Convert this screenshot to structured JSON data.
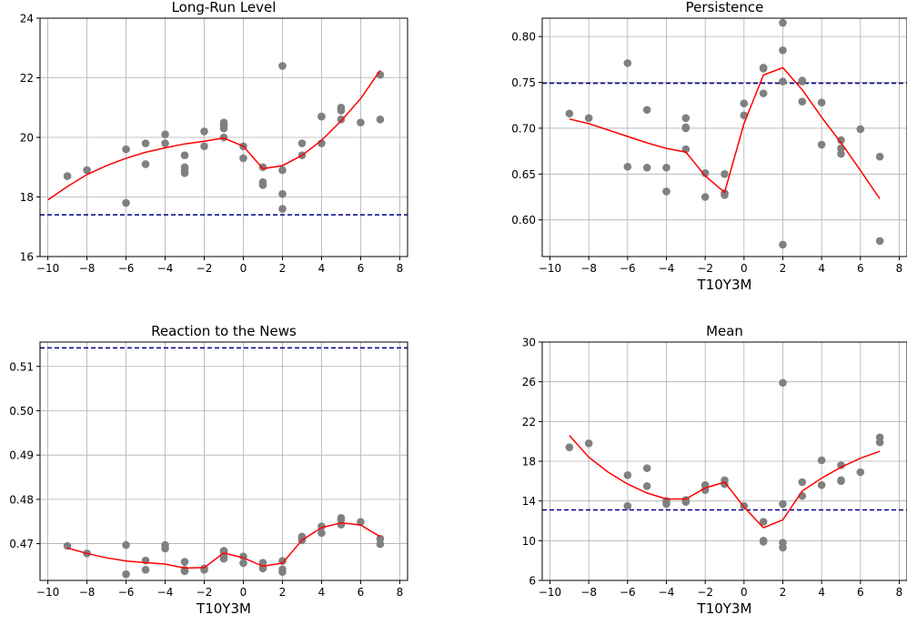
{
  "chart_data": [
    {
      "type": "scatter",
      "title": "Long-Run Level",
      "xlabel": "",
      "ylabel": "",
      "xlim": [
        -10.4,
        8.4
      ],
      "ylim": [
        16,
        24
      ],
      "xticks": [
        -10,
        -8,
        -6,
        -4,
        -2,
        0,
        2,
        4,
        6,
        8
      ],
      "yticks": [
        16,
        18,
        20,
        22,
        24
      ],
      "ytick_labels": [
        "16",
        "18",
        "20",
        "22",
        "24"
      ],
      "reference_line": 17.4,
      "points": [
        [
          -9,
          18.7
        ],
        [
          -8,
          18.9
        ],
        [
          -6,
          19.6
        ],
        [
          -6,
          17.8
        ],
        [
          -5,
          19.8
        ],
        [
          -5,
          19.1
        ],
        [
          -4,
          20.1
        ],
        [
          -4,
          19.8
        ],
        [
          -3,
          19.4
        ],
        [
          -3,
          19.0
        ],
        [
          -3,
          18.8
        ],
        [
          -3,
          18.9
        ],
        [
          -2,
          20.2
        ],
        [
          -2,
          19.7
        ],
        [
          -1,
          20.5
        ],
        [
          -1,
          20.4
        ],
        [
          -1,
          20.3
        ],
        [
          -1,
          20.0
        ],
        [
          0,
          19.7
        ],
        [
          0,
          19.3
        ],
        [
          1,
          19.0
        ],
        [
          1,
          18.4
        ],
        [
          1,
          18.5
        ],
        [
          2,
          22.4
        ],
        [
          2,
          18.9
        ],
        [
          2,
          18.1
        ],
        [
          2,
          17.6
        ],
        [
          3,
          19.8
        ],
        [
          3,
          19.4
        ],
        [
          4,
          20.7
        ],
        [
          4,
          20.7
        ],
        [
          4,
          19.8
        ],
        [
          5,
          21.0
        ],
        [
          5,
          20.9
        ],
        [
          5,
          20.6
        ],
        [
          6,
          20.5
        ],
        [
          7,
          22.1
        ],
        [
          7,
          20.6
        ]
      ],
      "trend": [
        [
          -10,
          17.9
        ],
        [
          -9,
          18.35
        ],
        [
          -8,
          18.75
        ],
        [
          -7,
          19.05
        ],
        [
          -6,
          19.3
        ],
        [
          -5,
          19.5
        ],
        [
          -4,
          19.65
        ],
        [
          -3,
          19.78
        ],
        [
          -2,
          19.87
        ],
        [
          -1,
          19.98
        ],
        [
          0,
          19.7
        ],
        [
          1,
          18.95
        ],
        [
          2,
          19.05
        ],
        [
          3,
          19.4
        ],
        [
          4,
          19.9
        ],
        [
          5,
          20.55
        ],
        [
          6,
          21.3
        ],
        [
          7,
          22.25
        ]
      ]
    },
    {
      "type": "scatter",
      "title": "Persistence",
      "xlabel": "T10Y3M",
      "ylabel": "",
      "xlim": [
        -10.4,
        8.4
      ],
      "ylim": [
        0.56,
        0.82
      ],
      "xticks": [
        -10,
        -8,
        -6,
        -4,
        -2,
        0,
        2,
        4,
        6,
        8
      ],
      "yticks": [
        0.6,
        0.65,
        0.7,
        0.75,
        0.8
      ],
      "ytick_labels": [
        "0.60",
        "0.65",
        "0.70",
        "0.75",
        "0.80"
      ],
      "reference_line": 0.749,
      "points": [
        [
          -9,
          0.716
        ],
        [
          -8,
          0.711
        ],
        [
          -6,
          0.771
        ],
        [
          -6,
          0.658
        ],
        [
          -5,
          0.72
        ],
        [
          -5,
          0.657
        ],
        [
          -4,
          0.657
        ],
        [
          -4,
          0.631
        ],
        [
          -3,
          0.711
        ],
        [
          -3,
          0.701
        ],
        [
          -3,
          0.7
        ],
        [
          -3,
          0.677
        ],
        [
          -2,
          0.651
        ],
        [
          -2,
          0.625
        ],
        [
          -1,
          0.65
        ],
        [
          -1,
          0.629
        ],
        [
          -1,
          0.627
        ],
        [
          0,
          0.727
        ],
        [
          0,
          0.714
        ],
        [
          1,
          0.766
        ],
        [
          1,
          0.765
        ],
        [
          1,
          0.738
        ],
        [
          2,
          0.815
        ],
        [
          2,
          0.785
        ],
        [
          2,
          0.751
        ],
        [
          2,
          0.573
        ],
        [
          3,
          0.752
        ],
        [
          3,
          0.751
        ],
        [
          3,
          0.729
        ],
        [
          4,
          0.728
        ],
        [
          4,
          0.682
        ],
        [
          5,
          0.687
        ],
        [
          5,
          0.678
        ],
        [
          5,
          0.672
        ],
        [
          6,
          0.699
        ],
        [
          7,
          0.669
        ],
        [
          7,
          0.577
        ]
      ],
      "trend": [
        [
          -9,
          0.71
        ],
        [
          -8,
          0.705
        ],
        [
          -7,
          0.698
        ],
        [
          -6,
          0.691
        ],
        [
          -5,
          0.684
        ],
        [
          -4,
          0.678
        ],
        [
          -3,
          0.674
        ],
        [
          -2,
          0.648
        ],
        [
          -1,
          0.63
        ],
        [
          0,
          0.705
        ],
        [
          1,
          0.758
        ],
        [
          2,
          0.766
        ],
        [
          3,
          0.742
        ],
        [
          4,
          0.712
        ],
        [
          5,
          0.684
        ],
        [
          6,
          0.654
        ],
        [
          7,
          0.623
        ]
      ]
    },
    {
      "type": "scatter",
      "title": "Reaction to the News",
      "xlabel": "T10Y3M",
      "ylabel": "",
      "xlim": [
        -10.4,
        8.4
      ],
      "ylim": [
        0.4617,
        0.5155
      ],
      "xticks": [
        -10,
        -8,
        -6,
        -4,
        -2,
        0,
        2,
        4,
        6,
        8
      ],
      "yticks": [
        0.47,
        0.48,
        0.49,
        0.5,
        0.51
      ],
      "ytick_labels": [
        "0.47",
        "0.48",
        "0.49",
        "0.50",
        "0.51"
      ],
      "reference_line": 0.5142,
      "points": [
        [
          -9,
          0.4695
        ],
        [
          -8,
          0.4678
        ],
        [
          -6,
          0.4697
        ],
        [
          -6,
          0.4631
        ],
        [
          -5,
          0.4662
        ],
        [
          -5,
          0.4641
        ],
        [
          -4,
          0.4697
        ],
        [
          -4,
          0.4689
        ],
        [
          -3,
          0.4659
        ],
        [
          -3,
          0.4641
        ],
        [
          -3,
          0.4638
        ],
        [
          -2,
          0.4644
        ],
        [
          -2,
          0.4641
        ],
        [
          -1,
          0.4684
        ],
        [
          -1,
          0.4681
        ],
        [
          -1,
          0.4671
        ],
        [
          -1,
          0.4666
        ],
        [
          0,
          0.4671
        ],
        [
          0,
          0.4656
        ],
        [
          1,
          0.4657
        ],
        [
          1,
          0.4646
        ],
        [
          1,
          0.4644
        ],
        [
          2,
          0.4661
        ],
        [
          2,
          0.4642
        ],
        [
          2,
          0.4636
        ],
        [
          3,
          0.4716
        ],
        [
          3,
          0.4712
        ],
        [
          3,
          0.4708
        ],
        [
          4,
          0.4739
        ],
        [
          4,
          0.4724
        ],
        [
          5,
          0.4758
        ],
        [
          5,
          0.4754
        ],
        [
          5,
          0.4743
        ],
        [
          6,
          0.4749
        ],
        [
          7,
          0.4711
        ],
        [
          7,
          0.4699
        ]
      ],
      "trend": [
        [
          -9,
          0.469
        ],
        [
          -8,
          0.4678
        ],
        [
          -7,
          0.4668
        ],
        [
          -6,
          0.4661
        ],
        [
          -5,
          0.4657
        ],
        [
          -4,
          0.4654
        ],
        [
          -3,
          0.4645
        ],
        [
          -2,
          0.4646
        ],
        [
          -1,
          0.4679
        ],
        [
          0,
          0.4668
        ],
        [
          1,
          0.4649
        ],
        [
          2,
          0.4656
        ],
        [
          3,
          0.4708
        ],
        [
          4,
          0.4736
        ],
        [
          5,
          0.4747
        ],
        [
          6,
          0.4742
        ],
        [
          7,
          0.4716
        ]
      ]
    },
    {
      "type": "scatter",
      "title": "Mean",
      "xlabel": "T10Y3M",
      "ylabel": "",
      "xlim": [
        -10.4,
        8.4
      ],
      "ylim": [
        6,
        30
      ],
      "xticks": [
        -10,
        -8,
        -6,
        -4,
        -2,
        0,
        2,
        4,
        6,
        8
      ],
      "yticks": [
        6,
        10,
        14,
        18,
        22,
        26,
        30
      ],
      "ytick_labels": [
        "6",
        "10",
        "14",
        "18",
        "22",
        "26",
        "30"
      ],
      "reference_line": 13.1,
      "points": [
        [
          -9,
          19.4
        ],
        [
          -8,
          19.8
        ],
        [
          -6,
          16.6
        ],
        [
          -6,
          13.5
        ],
        [
          -5,
          17.3
        ],
        [
          -5,
          15.5
        ],
        [
          -4,
          14.0
        ],
        [
          -4,
          13.7
        ],
        [
          -3,
          14.1
        ],
        [
          -3,
          13.9
        ],
        [
          -2,
          15.6
        ],
        [
          -2,
          15.1
        ],
        [
          -1,
          16.1
        ],
        [
          -1,
          15.7
        ],
        [
          0,
          13.5
        ],
        [
          1,
          11.9
        ],
        [
          1,
          10.0
        ],
        [
          1,
          9.9
        ],
        [
          2,
          25.9
        ],
        [
          2,
          13.7
        ],
        [
          2,
          9.8
        ],
        [
          2,
          9.3
        ],
        [
          3,
          15.9
        ],
        [
          3,
          14.5
        ],
        [
          4,
          18.1
        ],
        [
          4,
          15.6
        ],
        [
          5,
          17.6
        ],
        [
          5,
          16.1
        ],
        [
          5,
          16.0
        ],
        [
          6,
          16.9
        ],
        [
          7,
          20.4
        ],
        [
          7,
          19.9
        ]
      ],
      "trend": [
        [
          -9,
          20.6
        ],
        [
          -8,
          18.4
        ],
        [
          -7,
          16.9
        ],
        [
          -6,
          15.7
        ],
        [
          -5,
          14.8
        ],
        [
          -4,
          14.2
        ],
        [
          -3,
          14.2
        ],
        [
          -2,
          15.3
        ],
        [
          -1,
          15.9
        ],
        [
          0,
          13.4
        ],
        [
          1,
          11.3
        ],
        [
          2,
          12.1
        ],
        [
          3,
          15.0
        ],
        [
          4,
          16.3
        ],
        [
          5,
          17.4
        ],
        [
          6,
          18.3
        ],
        [
          7,
          19.0
        ]
      ]
    }
  ],
  "colors": {
    "points": "#808080",
    "trend": "#ff0000",
    "reference": "#00008b",
    "grid": "#b0b0b0"
  }
}
